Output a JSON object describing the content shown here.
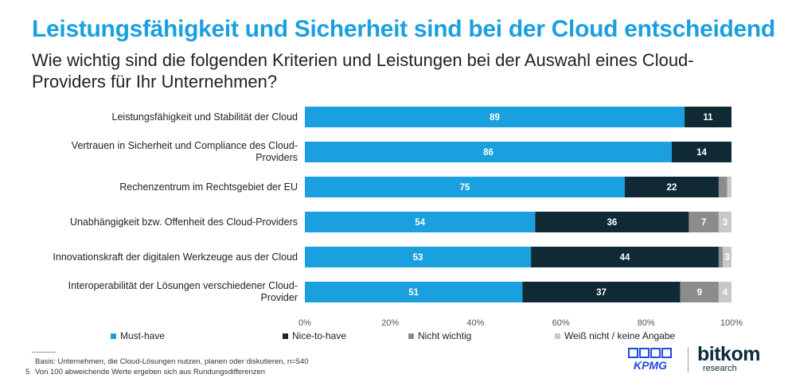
{
  "title": "Leistungsfähigkeit und Sicherheit sind bei der Cloud entscheidend",
  "subtitle": "Wie wichtig sind die folgenden Kriterien und Leistungen bei der Auswahl eines Cloud-Providers für Ihr Unternehmen?",
  "chart_data": {
    "type": "bar",
    "orientation": "horizontal",
    "stacked": true,
    "categories": [
      "Leistungsfähigkeit und Stabilität der Cloud",
      "Vertrauen in Sicherheit und Compliance des Cloud-Providers",
      "Rechenzentrum im Rechtsgebiet der EU",
      "Unabhängigkeit bzw. Offenheit des Cloud-Providers",
      "Innovationskraft der digitalen Werkzeuge aus der Cloud",
      "Interoperabilität der Lösungen verschiedener Cloud-Provider"
    ],
    "series": [
      {
        "name": "Must-have",
        "color": "#1aa0de",
        "values": [
          89,
          86,
          75,
          54,
          53,
          51
        ]
      },
      {
        "name": "Nice-to-have",
        "color": "#0f2a35",
        "values": [
          11,
          14,
          22,
          36,
          44,
          37
        ]
      },
      {
        "name": "Nicht wichtig",
        "color": "#8c8c8c",
        "values": [
          0,
          0,
          2,
          7,
          1,
          9
        ]
      },
      {
        "name": "Weiß nicht / keine Angabe",
        "color": "#c8c8c8",
        "values": [
          0,
          0,
          1,
          3,
          3,
          4
        ]
      }
    ],
    "data_labels": [
      [
        "89",
        "11",
        "",
        ""
      ],
      [
        "86",
        "14",
        "",
        ""
      ],
      [
        "75",
        "22",
        "",
        ""
      ],
      [
        "54",
        "36",
        "7",
        "3"
      ],
      [
        "53",
        "44",
        "",
        "3"
      ],
      [
        "51",
        "37",
        "9",
        "4"
      ]
    ],
    "x_ticks": [
      "0%",
      "20%",
      "40%",
      "60%",
      "80%",
      "100%"
    ],
    "xlim": [
      0,
      100
    ],
    "grid": false,
    "legend_position": "bottom"
  },
  "footnotes": {
    "basis": "Basis: Unternehmen, die Cloud-Lösungen nutzen, planen oder diskutieren, n=540",
    "diff": "Von 100 abweichende Werte ergeben sich aus Rundungsdifferenzen",
    "page": "5"
  },
  "logos": {
    "kpmg": "KPMG",
    "bitkom": "bitkom",
    "bitkom_sub": "research"
  }
}
